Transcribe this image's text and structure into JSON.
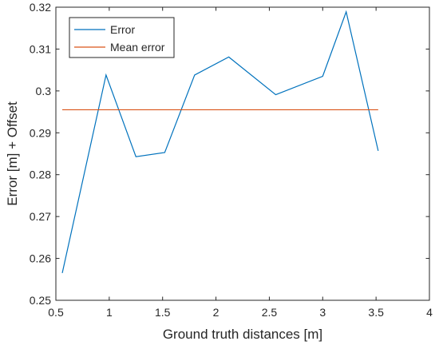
{
  "chart_data": {
    "type": "line",
    "xlabel": "Ground truth distances [m]",
    "ylabel": "Error [m] + Offset",
    "xlim": [
      0.5,
      4
    ],
    "ylim": [
      0.25,
      0.32
    ],
    "xticks": [
      "0.5",
      "1",
      "1.5",
      "2",
      "2.5",
      "3",
      "3.5",
      "4"
    ],
    "yticks": [
      "0.25",
      "0.26",
      "0.27",
      "0.28",
      "0.29",
      "0.3",
      "0.31",
      "0.32"
    ],
    "grid": false,
    "legend_position": "top-left",
    "series": [
      {
        "name": "Error",
        "color": "#0072BD",
        "x": [
          0.56,
          0.97,
          1.25,
          1.52,
          1.8,
          2.12,
          2.56,
          3.0,
          3.22,
          3.52
        ],
        "y": [
          0.2565,
          0.3038,
          0.2843,
          0.2853,
          0.3038,
          0.3081,
          0.2991,
          0.3035,
          0.3189,
          0.2857
        ]
      },
      {
        "name": "Mean error",
        "color": "#D95319",
        "x": [
          0.56,
          3.52
        ],
        "y": [
          0.2955,
          0.2955
        ]
      }
    ]
  }
}
